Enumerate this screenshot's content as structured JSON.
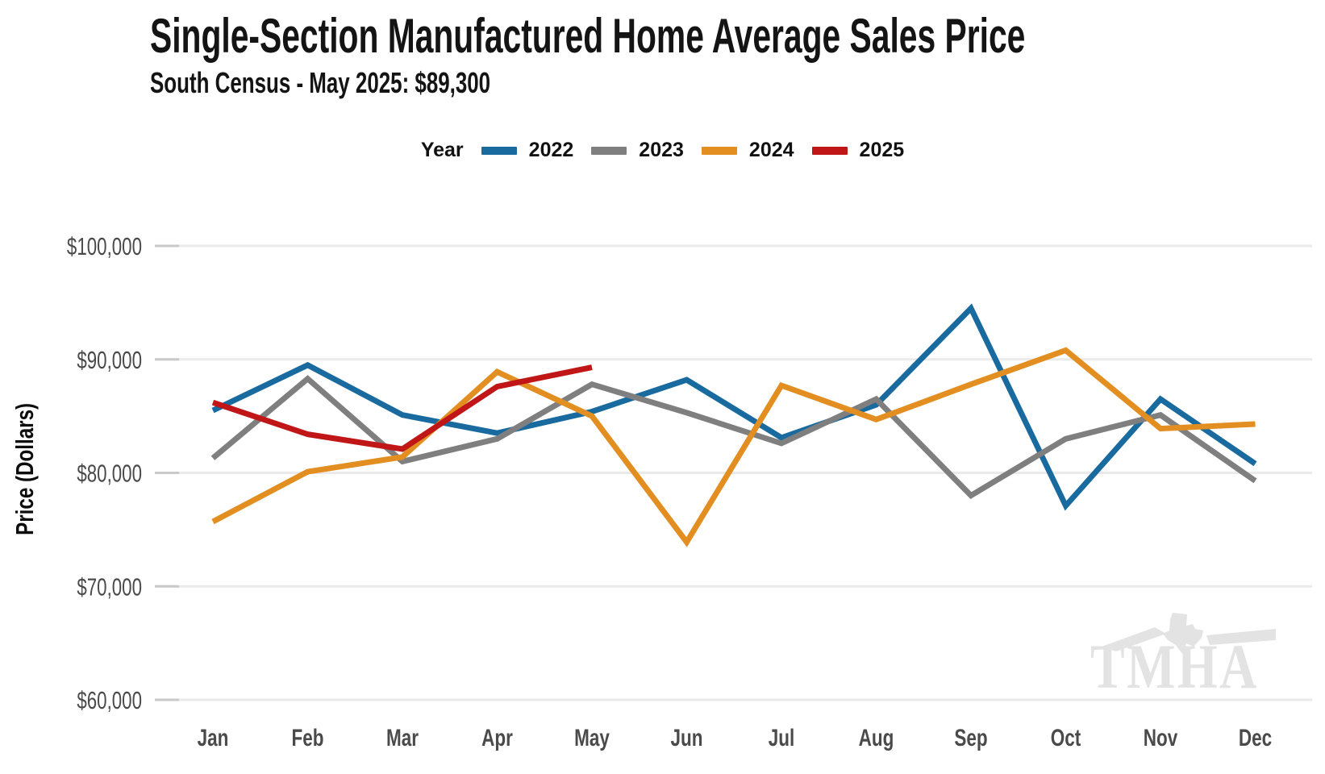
{
  "header": {
    "title": "Single-Section Manufactured Home Average Sales Price",
    "subtitle": "South Census - May 2025: $89,300"
  },
  "legend": {
    "label": "Year",
    "position": "top-center"
  },
  "watermark": {
    "text": "TMHA"
  },
  "colors": {
    "grid": "#eaeaea",
    "tick_stub": "#c9c9c9",
    "tick_text": "#4a4a4a",
    "axis_title": "#0d0d0d",
    "watermark": "#e3e3e4"
  },
  "chart_data": {
    "type": "line",
    "title": "Single-Section Manufactured Home Average Sales Price",
    "subtitle": "South Census - May 2025: $89,300",
    "xlabel": "",
    "ylabel": "Price (Dollars)",
    "x": [
      "Jan",
      "Feb",
      "Mar",
      "Apr",
      "May",
      "Jun",
      "Jul",
      "Aug",
      "Sep",
      "Oct",
      "Nov",
      "Dec"
    ],
    "ylim": [
      60000,
      100000
    ],
    "yticks": [
      100000,
      90000,
      80000,
      70000,
      60000
    ],
    "ytick_labels": [
      "$100,000",
      "$90,000",
      "$80,000",
      "$70,000",
      "$60,000"
    ],
    "grid": true,
    "legend_position": "top-center",
    "series": [
      {
        "name": "2022",
        "color": "#186A9F",
        "values": [
          85500,
          89500,
          85100,
          83500,
          85400,
          88200,
          83100,
          86000,
          94500,
          77100,
          86500,
          80800
        ]
      },
      {
        "name": "2023",
        "color": "#7F7F7F",
        "values": [
          81300,
          88300,
          81000,
          83000,
          87800,
          85300,
          82600,
          86500,
          78000,
          83000,
          85100,
          79300
        ]
      },
      {
        "name": "2024",
        "color": "#E28E20",
        "values": [
          75700,
          80100,
          81400,
          88900,
          85000,
          73900,
          87700,
          84700,
          87800,
          90800,
          83900,
          84300
        ]
      },
      {
        "name": "2025",
        "color": "#C01617",
        "values": [
          86200,
          83400,
          82100,
          87600,
          89300
        ]
      }
    ]
  }
}
